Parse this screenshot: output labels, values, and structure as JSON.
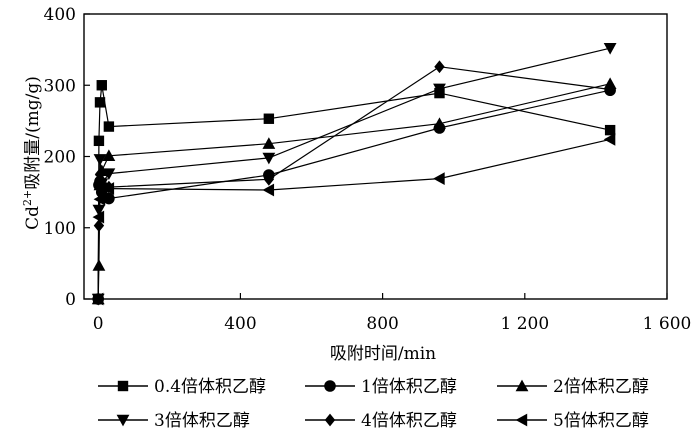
{
  "chart_data": {
    "type": "line",
    "xlabel": "吸附时间/min",
    "ylabel_main": "Cd",
    "ylabel_sup": "2+",
    "ylabel_rest": "吸附量/(mg/g)",
    "xlim": [
      -40,
      1600
    ],
    "ylim": [
      0,
      400
    ],
    "x_ticks": [
      {
        "value": 0,
        "label": "0"
      },
      {
        "value": 400,
        "label": "400"
      },
      {
        "value": 800,
        "label": "800"
      },
      {
        "value": 1200,
        "label": "1 200"
      },
      {
        "value": 1600,
        "label": "1 600"
      }
    ],
    "y_ticks": [
      {
        "value": 0,
        "label": "0"
      },
      {
        "value": 100,
        "label": "100"
      },
      {
        "value": 200,
        "label": "200"
      },
      {
        "value": 300,
        "label": "300"
      },
      {
        "value": 400,
        "label": "400"
      }
    ],
    "legend_placement": "bottom",
    "series": [
      {
        "name": "0.4倍体积乙醇",
        "marker": "square",
        "points": [
          [
            0,
            0
          ],
          [
            2,
            222
          ],
          [
            5,
            276
          ],
          [
            10,
            300
          ],
          [
            30,
            242
          ],
          [
            480,
            253
          ],
          [
            960,
            289
          ],
          [
            1440,
            237
          ]
        ]
      },
      {
        "name": "1倍体积乙醇",
        "marker": "circle",
        "points": [
          [
            0,
            0
          ],
          [
            2,
            160
          ],
          [
            5,
            165
          ],
          [
            10,
            150
          ],
          [
            30,
            141
          ],
          [
            480,
            174
          ],
          [
            960,
            240
          ],
          [
            1440,
            293
          ]
        ]
      },
      {
        "name": "2倍体积乙醇",
        "marker": "triangle-up",
        "points": [
          [
            0,
            0
          ],
          [
            2,
            47
          ],
          [
            5,
            160
          ],
          [
            10,
            180
          ],
          [
            30,
            201
          ],
          [
            480,
            218
          ],
          [
            960,
            246
          ],
          [
            1440,
            302
          ]
        ]
      },
      {
        "name": "3倍体积乙醇",
        "marker": "triangle-down",
        "points": [
          [
            0,
            0
          ],
          [
            2,
            125
          ],
          [
            5,
            196
          ],
          [
            10,
            162
          ],
          [
            30,
            176
          ],
          [
            480,
            198
          ],
          [
            960,
            295
          ],
          [
            1440,
            352
          ]
        ]
      },
      {
        "name": "4倍体积乙醇",
        "marker": "diamond",
        "points": [
          [
            0,
            0
          ],
          [
            2,
            103
          ],
          [
            5,
            175
          ],
          [
            10,
            155
          ],
          [
            30,
            157
          ],
          [
            480,
            168
          ],
          [
            960,
            326
          ],
          [
            1440,
            294
          ]
        ]
      },
      {
        "name": "5倍体积乙醇",
        "marker": "triangle-left",
        "points": [
          [
            0,
            0
          ],
          [
            2,
            115
          ],
          [
            5,
            140
          ],
          [
            10,
            155
          ],
          [
            30,
            155
          ],
          [
            480,
            153
          ],
          [
            960,
            169
          ],
          [
            1440,
            224
          ]
        ]
      }
    ]
  }
}
